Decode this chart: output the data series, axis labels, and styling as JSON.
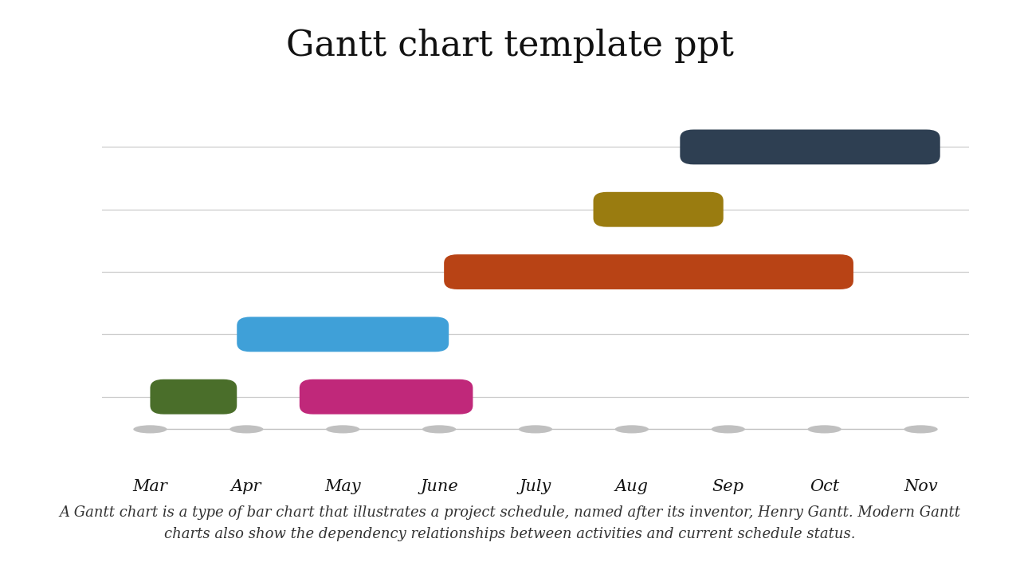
{
  "title": "Gantt chart template ppt",
  "title_fontsize": 32,
  "title_font": "serif",
  "months": [
    "Mar",
    "Apr",
    "May",
    "June",
    "July",
    "Aug",
    "Sep",
    "Oct",
    "Nov"
  ],
  "month_values": [
    3,
    4,
    5,
    6,
    7,
    8,
    9,
    10,
    11
  ],
  "xlim": [
    2.5,
    11.5
  ],
  "bars": [
    {
      "y": 5,
      "start": 8.5,
      "end": 11.2,
      "color": "#2e3f52",
      "height": 0.28
    },
    {
      "y": 4,
      "start": 7.6,
      "end": 8.95,
      "color": "#9a7c10",
      "height": 0.28
    },
    {
      "y": 3,
      "start": 6.05,
      "end": 10.3,
      "color": "#b84315",
      "height": 0.28
    },
    {
      "y": 2,
      "start": 3.9,
      "end": 6.1,
      "color": "#3fa0d8",
      "height": 0.28
    },
    {
      "y": 1,
      "start": 3.0,
      "end": 3.9,
      "color": "#4a6e2a",
      "height": 0.28
    },
    {
      "y": 1,
      "start": 4.55,
      "end": 6.35,
      "color": "#c0287a",
      "height": 0.28
    }
  ],
  "ylim": [
    0.3,
    5.7
  ],
  "grid_color": "#cccccc",
  "dot_color": "#c0c0c0",
  "background_color": "#ffffff",
  "caption": "A Gantt chart is a type of bar chart that illustrates a project schedule, named after its inventor, Henry Gantt. Modern Gantt\ncharts also show the dependency relationships between activities and current schedule status.",
  "caption_fontsize": 13
}
